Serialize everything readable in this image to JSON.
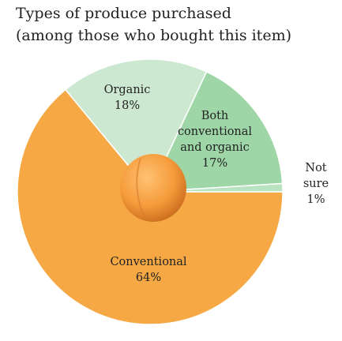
{
  "chart_data": {
    "type": "pie",
    "title": "Types of produce purchased",
    "subtitle": "(among those who bought this item)",
    "categories": [
      "Conventional",
      "Organic",
      "Both conventional and organic",
      "Not sure"
    ],
    "values": [
      64,
      18,
      17,
      1
    ],
    "value_labels": [
      "64%",
      "18%",
      "17%",
      "1%"
    ],
    "colors": [
      "#f5a843",
      "#cde8d1",
      "#9fd6a8",
      "#b9e2c0"
    ]
  }
}
